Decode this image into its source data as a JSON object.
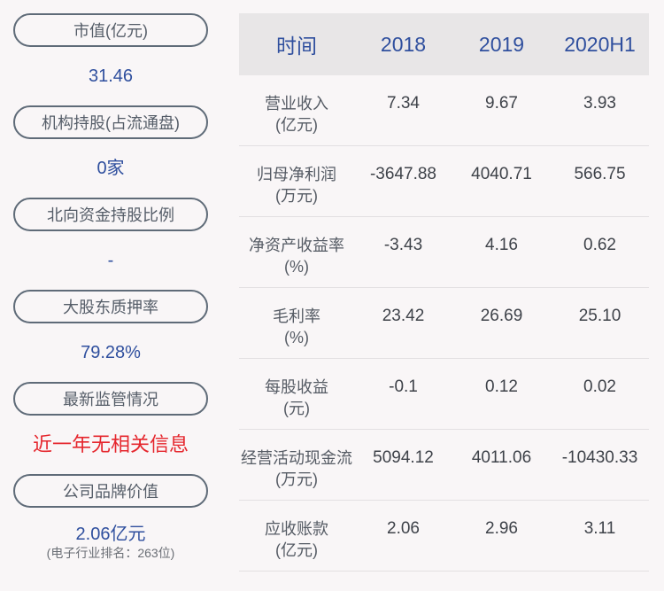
{
  "left_panel": {
    "items": [
      {
        "label": "市值(亿元)",
        "value": "31.46",
        "value_color": "#2f4f9e"
      },
      {
        "label": "机构持股(占流通盘)",
        "value": "0家",
        "value_color": "#2f4f9e"
      },
      {
        "label": "北向资金持股比例",
        "value": "-",
        "value_color": "#2f4f9e"
      },
      {
        "label": "大股东质押率",
        "value": "79.28%",
        "value_color": "#2f4f9e"
      },
      {
        "label": "最新监管情况",
        "value": "近一年无相关信息",
        "value_color": "#e5262d"
      },
      {
        "label": "公司品牌价值",
        "value": "2.06亿元",
        "value_color": "#2f4f9e",
        "sub": "(电子行业排名：263位)"
      }
    ]
  },
  "table": {
    "headers": [
      "时间",
      "2018",
      "2019",
      "2020H1"
    ],
    "rows": [
      {
        "label": "营业收入",
        "unit": "(亿元)",
        "values": [
          "7.34",
          "9.67",
          "3.93"
        ]
      },
      {
        "label": "归母净利润",
        "unit": "(万元)",
        "values": [
          "-3647.88",
          "4040.71",
          "566.75"
        ]
      },
      {
        "label": "净资产收益率",
        "unit": "(%)",
        "values": [
          "-3.43",
          "4.16",
          "0.62"
        ]
      },
      {
        "label": "毛利率",
        "unit": "(%)",
        "values": [
          "23.42",
          "26.69",
          "25.10"
        ]
      },
      {
        "label": "每股收益",
        "unit": "(元)",
        "values": [
          "-0.1",
          "0.12",
          "0.02"
        ]
      },
      {
        "label": "经营活动现金流",
        "unit": "(万元)",
        "values": [
          "5094.12",
          "4011.06",
          "-10430.33"
        ]
      },
      {
        "label": "应收账款",
        "unit": "(亿元)",
        "values": [
          "2.06",
          "2.96",
          "3.11"
        ]
      }
    ]
  },
  "colors": {
    "accent_blue": "#2f4f9e",
    "alert_red": "#e5262d",
    "background": "#f9f6f7",
    "header_bg": "#e8e6e7"
  }
}
